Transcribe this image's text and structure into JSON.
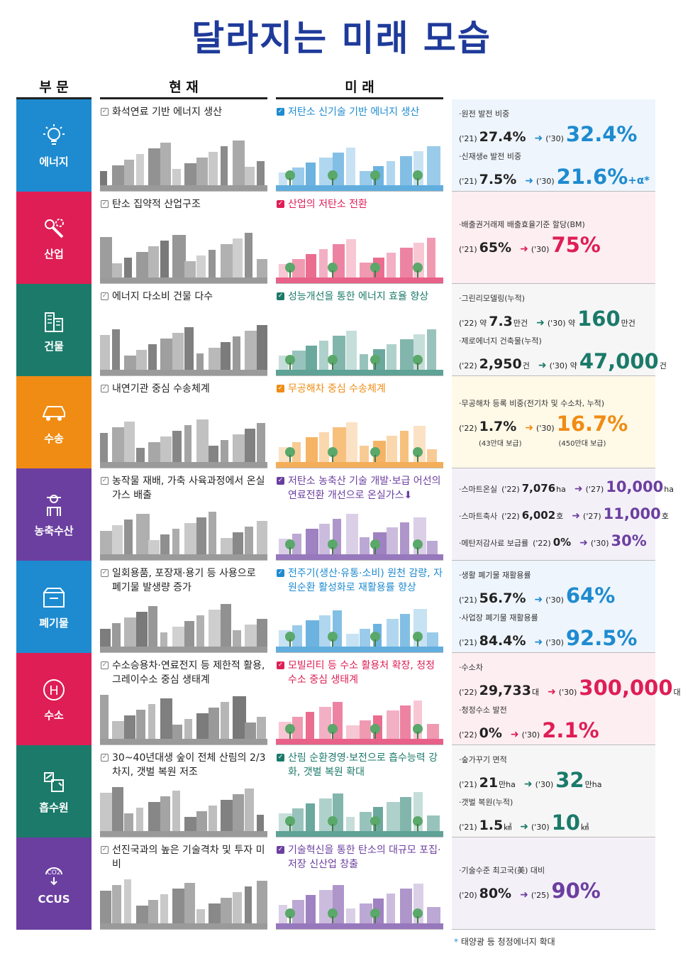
{
  "title": "달라지는 미래 모습",
  "columns": {
    "category": "부 문",
    "current": "현 재",
    "future": "미 래"
  },
  "rows": [
    {
      "category": "에너지",
      "icon": "lightbulb-icon",
      "color": "#1e8bd0",
      "current": "화석연료 기반 에너지 생산",
      "future": "저탄소 신기술 기반 에너지 생산",
      "future_color": "#1e8bd0",
      "stats": [
        {
          "label": "·원전 발전 비중",
          "y1": "('21)",
          "v1": "27.4%",
          "y2": "('30)",
          "v2": "32.4%"
        },
        {
          "label": "·신재생e 발전 비중",
          "y1": "('21)",
          "v1": "7.5%",
          "y2": "('30)",
          "v2": "21.6%",
          "extra": "+α*"
        }
      ]
    },
    {
      "category": "산업",
      "icon": "wrench-gear-icon",
      "color": "#de1e55",
      "current": "탄소 집약적 산업구조",
      "future": "산업의 저탄소 전환",
      "future_color": "#de1e55",
      "stats": [
        {
          "label": "·배출권거래제 배출효율기준 할당(BM)",
          "y1": "('21)",
          "v1": "65%",
          "y2": "('30)",
          "v2": "75%"
        }
      ]
    },
    {
      "category": "건물",
      "icon": "building-icon",
      "color": "#1b7a6a",
      "current": "에너지 다소비 건물 다수",
      "future": "성능개선을 통한 에너지 효율 향상",
      "future_color": "#1b7a6a",
      "stats": [
        {
          "label": "·그린리모델링(누적)",
          "y1": "('22) 약",
          "v1": "7.3",
          "u1": "만건",
          "y2": "('30) 약",
          "v2": "160",
          "u2": "만건"
        },
        {
          "label": "·제로에너지 건축물(누적)",
          "y1": "('22)",
          "v1": "2,950",
          "u1": "건",
          "y2": "('30) 약",
          "v2": "47,000",
          "u2": "건"
        }
      ]
    },
    {
      "category": "수송",
      "icon": "car-icon",
      "color": "#f08c13",
      "current": "내연기관 중심 수송체계",
      "future": "무공해차 중심 수송체계",
      "future_color": "#f08c13",
      "stats": [
        {
          "label": "·무공해차 등록 비중(전기차 및 수소차, 누적)",
          "y1": "('22)",
          "v1": "1.7%",
          "y2": "('30)",
          "v2": "16.7%",
          "s1": "(43만대 보급)",
          "s2": "(450만대 보급)"
        }
      ]
    },
    {
      "category": "농축수산",
      "icon": "farmer-icon",
      "color": "#6b3fa0",
      "current": "농작물 재배, 가축 사육과정에서 온실가스 배출",
      "future": "저탄소 농축산 기술 개발·보급 어선의 연료전환 개선으로 온실가스⬇",
      "future_color": "#6b3fa0",
      "stats": [
        {
          "label": "·스마트온실",
          "y1": "('22)",
          "v1": "7,076",
          "u1": "ha",
          "y2": "('27)",
          "v2": "10,000",
          "u2": "ha"
        },
        {
          "label": "·스마트축사",
          "y1": "('22)",
          "v1": "6,002",
          "u1": "호",
          "y2": "('27)",
          "v2": "11,000",
          "u2": "호"
        },
        {
          "label": "·메탄저감사료 보급률",
          "y1": "('22)",
          "v1": "0%",
          "y2": "('30)",
          "v2": "30%"
        }
      ]
    },
    {
      "category": "폐기물",
      "icon": "box-icon",
      "color": "#1e8bd0",
      "current": "일회용품, 포장재·용기 등 사용으로 폐기물 발생량 증가",
      "future": "전주기(생산·유통·소비) 원천 감량, 자원순환 활성화로 재활용률 향상",
      "future_color": "#1e8bd0",
      "stats": [
        {
          "label": "·생활 폐기물 재활용률",
          "y1": "('21)",
          "v1": "56.7%",
          "y2": "('30)",
          "v2": "64%"
        },
        {
          "label": "·사업장 폐기물 재활용률",
          "y1": "('21)",
          "v1": "84.4%",
          "y2": "('30)",
          "v2": "92.5%"
        }
      ]
    },
    {
      "category": "수소",
      "icon": "hydrogen-icon",
      "color": "#de1e55",
      "current": "수소승용차·연료전지 등 제한적 활용, 그레이수소 중심 생태계",
      "future": "모빌리티 등 수소 활용처 확장, 청정수소 중심 생태계",
      "future_color": "#de1e55",
      "stats": [
        {
          "label": "·수소차",
          "y1": "('22)",
          "v1": "29,733",
          "u1": "대",
          "y2": "('30)",
          "v2": "300,000",
          "u2": "대"
        },
        {
          "label": "·청정수소 발전",
          "y1": "('22)",
          "v1": "0%",
          "y2": "('30)",
          "v2": "2.1%"
        }
      ]
    },
    {
      "category": "흡수원",
      "icon": "forest-icon",
      "color": "#1b7a6a",
      "current": "30~40년대생 숲이 전체 산림의 2/3 차지, 갯벌 복원 저조",
      "future": "산림 순환경영·보전으로 흡수능력 강화, 갯벌 복원 확대",
      "future_color": "#1b7a6a",
      "stats": [
        {
          "label": "·숲가꾸기 면적",
          "y1": "('21)",
          "v1": "21",
          "u1": "만ha",
          "y2": "('30)",
          "v2": "32",
          "u2": "만ha"
        },
        {
          "label": "·갯벌 복원(누적)",
          "y1": "('21)",
          "v1": "1.5",
          "u1": "㎢",
          "y2": "('30)",
          "v2": "10",
          "u2": "㎢"
        }
      ]
    },
    {
      "category": "CCUS",
      "icon": "co2-capture-icon",
      "color": "#6b3fa0",
      "current": "선진국과의 높은 기술격차 및 투자 미비",
      "future": "기술혁신을 통한 탄소의 대규모 포집·저장 신산업 창출",
      "future_color": "#6b3fa0",
      "stats": [
        {
          "label": "·기술수준 최고국(美) 대비",
          "y1": "('20)",
          "v1": "80%",
          "y2": "('25)",
          "v2": "90%"
        }
      ]
    }
  ],
  "footnote_mark": "*",
  "footnote": "태양광 등 청정에너지 확대",
  "stat_bg": [
    "#eef5fc",
    "#fdeef2",
    "#f6f6f6",
    "#fff9e8",
    "#f4f0f8",
    "#eef5fc",
    "#fdeef2",
    "#f6f6f6",
    "#f4f0f8"
  ]
}
